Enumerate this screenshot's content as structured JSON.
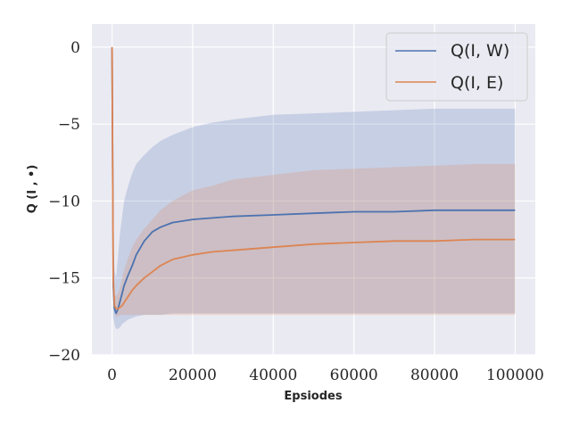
{
  "chart_data": {
    "type": "line",
    "xlabel": "Epsiodes",
    "ylabel": "Q (I , •)",
    "xlim": [
      -5000,
      105000
    ],
    "ylim": [
      -20,
      1.5
    ],
    "x_ticks": [
      0,
      20000,
      40000,
      60000,
      80000,
      100000
    ],
    "x_tick_labels": [
      "0",
      "20000",
      "40000",
      "60000",
      "80000",
      "100000"
    ],
    "y_ticks": [
      0,
      -5,
      -10,
      -15,
      -20
    ],
    "y_tick_labels": [
      "0",
      "−5",
      "−10",
      "−15",
      "−20"
    ],
    "grid": true,
    "legend_position": "top-right",
    "series": [
      {
        "name": "Q(I, W)",
        "color": "#4c72b0",
        "x": [
          0,
          300,
          600,
          1000,
          1500,
          2000,
          2500,
          3000,
          4000,
          5000,
          6000,
          8000,
          10000,
          12000,
          15000,
          20000,
          25000,
          30000,
          40000,
          50000,
          60000,
          70000,
          80000,
          90000,
          100000
        ],
        "values": [
          0,
          -15.5,
          -17.0,
          -17.3,
          -17.0,
          -16.5,
          -16.0,
          -15.5,
          -14.8,
          -14.2,
          -13.5,
          -12.6,
          -12.0,
          -11.7,
          -11.4,
          -11.2,
          -11.1,
          -11.0,
          -10.9,
          -10.8,
          -10.7,
          -10.7,
          -10.6,
          -10.6,
          -10.6
        ],
        "band_upper": [
          0.5,
          -12.0,
          -14.5,
          -15.0,
          -13.5,
          -12.0,
          -11.0,
          -10.0,
          -9.0,
          -8.2,
          -7.6,
          -7.0,
          -6.5,
          -6.1,
          -5.7,
          -5.2,
          -4.9,
          -4.7,
          -4.4,
          -4.3,
          -4.2,
          -4.1,
          -4.0,
          -4.0,
          -4.0
        ],
        "band_lower": [
          -2.0,
          -17.5,
          -18.0,
          -18.3,
          -18.3,
          -18.2,
          -18.0,
          -17.9,
          -17.7,
          -17.6,
          -17.5,
          -17.4,
          -17.4,
          -17.4,
          -17.3,
          -17.3,
          -17.3,
          -17.3,
          -17.3,
          -17.3,
          -17.3,
          -17.3,
          -17.3,
          -17.3,
          -17.3
        ]
      },
      {
        "name": "Q(I, E)",
        "color": "#dd8452",
        "x": [
          0,
          300,
          600,
          1000,
          1500,
          2000,
          2500,
          3000,
          4000,
          5000,
          6000,
          8000,
          10000,
          12000,
          15000,
          20000,
          25000,
          30000,
          40000,
          50000,
          60000,
          70000,
          80000,
          90000,
          100000
        ],
        "values": [
          0,
          -15.0,
          -16.8,
          -17.0,
          -17.0,
          -16.9,
          -16.8,
          -16.6,
          -16.2,
          -15.8,
          -15.5,
          -15.0,
          -14.6,
          -14.2,
          -13.8,
          -13.5,
          -13.3,
          -13.2,
          -13.0,
          -12.8,
          -12.7,
          -12.6,
          -12.6,
          -12.5,
          -12.5
        ],
        "band_upper": [
          0.3,
          -14.0,
          -16.0,
          -16.2,
          -16.0,
          -15.6,
          -15.0,
          -14.5,
          -13.7,
          -13.0,
          -12.5,
          -11.8,
          -11.2,
          -10.6,
          -10.0,
          -9.3,
          -9.0,
          -8.6,
          -8.3,
          -8.0,
          -7.9,
          -7.8,
          -7.7,
          -7.6,
          -7.6
        ],
        "band_lower": [
          -1.0,
          -16.8,
          -17.2,
          -17.5,
          -17.5,
          -17.4,
          -17.4,
          -17.4,
          -17.4,
          -17.4,
          -17.4,
          -17.4,
          -17.4,
          -17.4,
          -17.4,
          -17.4,
          -17.4,
          -17.4,
          -17.4,
          -17.4,
          -17.4,
          -17.4,
          -17.4,
          -17.4,
          -17.4
        ]
      }
    ]
  }
}
